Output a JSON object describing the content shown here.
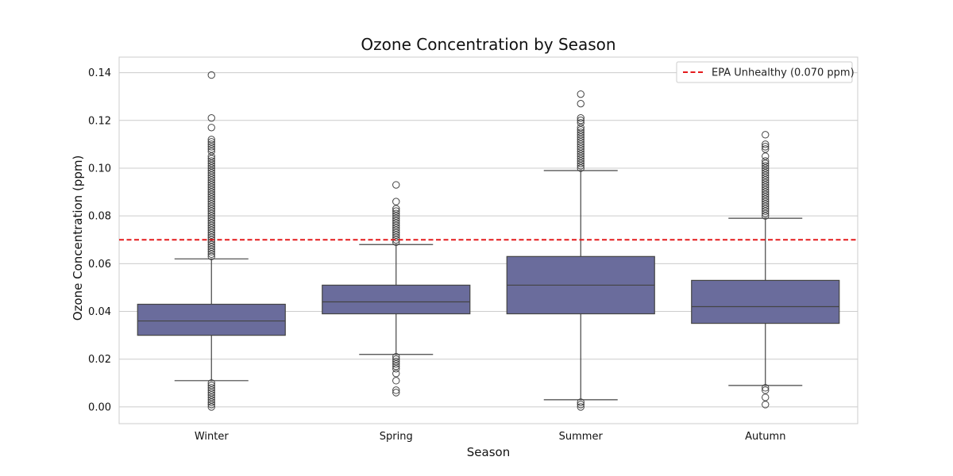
{
  "chart_data": {
    "type": "box",
    "title": "Ozone Concentration by Season",
    "xlabel": "Season",
    "ylabel": "Ozone Concentration (ppm)",
    "ylim": [
      -0.007,
      0.1465
    ],
    "yticks": [
      0.0,
      0.02,
      0.04,
      0.06,
      0.08,
      0.1,
      0.12,
      0.14
    ],
    "ytick_labels": [
      "0.00",
      "0.02",
      "0.04",
      "0.06",
      "0.08",
      "0.10",
      "0.12",
      "0.14"
    ],
    "grid": true,
    "categories": [
      "Winter",
      "Spring",
      "Summer",
      "Autumn"
    ],
    "boxes": [
      {
        "category": "Winter",
        "q1": 0.03,
        "median": 0.036,
        "q3": 0.043,
        "whisker_low": 0.011,
        "whisker_high": 0.062,
        "outliers": [
          0.139,
          0.121,
          0.117,
          0.112,
          0.111,
          0.11,
          0.109,
          0.108,
          0.107,
          0.105,
          0.104,
          0.103,
          0.102,
          0.101,
          0.1,
          0.099,
          0.098,
          0.097,
          0.096,
          0.095,
          0.094,
          0.093,
          0.092,
          0.091,
          0.09,
          0.089,
          0.088,
          0.087,
          0.086,
          0.085,
          0.084,
          0.083,
          0.082,
          0.081,
          0.08,
          0.079,
          0.078,
          0.077,
          0.076,
          0.075,
          0.074,
          0.073,
          0.072,
          0.071,
          0.07,
          0.069,
          0.068,
          0.067,
          0.066,
          0.065,
          0.064,
          0.063,
          0.01,
          0.009,
          0.008,
          0.007,
          0.006,
          0.005,
          0.004,
          0.003,
          0.002,
          0.001,
          0.0
        ]
      },
      {
        "category": "Spring",
        "q1": 0.039,
        "median": 0.044,
        "q3": 0.051,
        "whisker_low": 0.022,
        "whisker_high": 0.068,
        "outliers": [
          0.093,
          0.086,
          0.083,
          0.082,
          0.081,
          0.08,
          0.079,
          0.078,
          0.077,
          0.076,
          0.075,
          0.074,
          0.073,
          0.072,
          0.071,
          0.07,
          0.069,
          0.021,
          0.02,
          0.019,
          0.018,
          0.017,
          0.016,
          0.014,
          0.011,
          0.007,
          0.006
        ]
      },
      {
        "category": "Summer",
        "q1": 0.039,
        "median": 0.051,
        "q3": 0.063,
        "whisker_low": 0.003,
        "whisker_high": 0.099,
        "outliers": [
          0.131,
          0.127,
          0.121,
          0.12,
          0.119,
          0.117,
          0.116,
          0.115,
          0.114,
          0.113,
          0.112,
          0.111,
          0.11,
          0.109,
          0.108,
          0.107,
          0.106,
          0.105,
          0.104,
          0.103,
          0.102,
          0.101,
          0.1,
          0.002,
          0.001,
          0.0
        ]
      },
      {
        "category": "Autumn",
        "q1": 0.035,
        "median": 0.042,
        "q3": 0.053,
        "whisker_low": 0.009,
        "whisker_high": 0.079,
        "outliers": [
          0.114,
          0.11,
          0.109,
          0.108,
          0.105,
          0.103,
          0.102,
          0.101,
          0.1,
          0.099,
          0.098,
          0.097,
          0.096,
          0.095,
          0.094,
          0.093,
          0.092,
          0.091,
          0.09,
          0.089,
          0.088,
          0.087,
          0.086,
          0.085,
          0.084,
          0.083,
          0.082,
          0.081,
          0.08,
          0.008,
          0.007,
          0.004,
          0.001
        ]
      }
    ],
    "reference_line": {
      "y": 0.07,
      "label": "EPA Unhealthy (0.070 ppm)",
      "color": "#e41a1c",
      "style": "dashed"
    },
    "legend_position": "top-right",
    "colors": {
      "box_fill": "#6a6c9c",
      "box_edge": "#444444",
      "grid": "#cccccc",
      "frame": "#cccccc"
    }
  }
}
